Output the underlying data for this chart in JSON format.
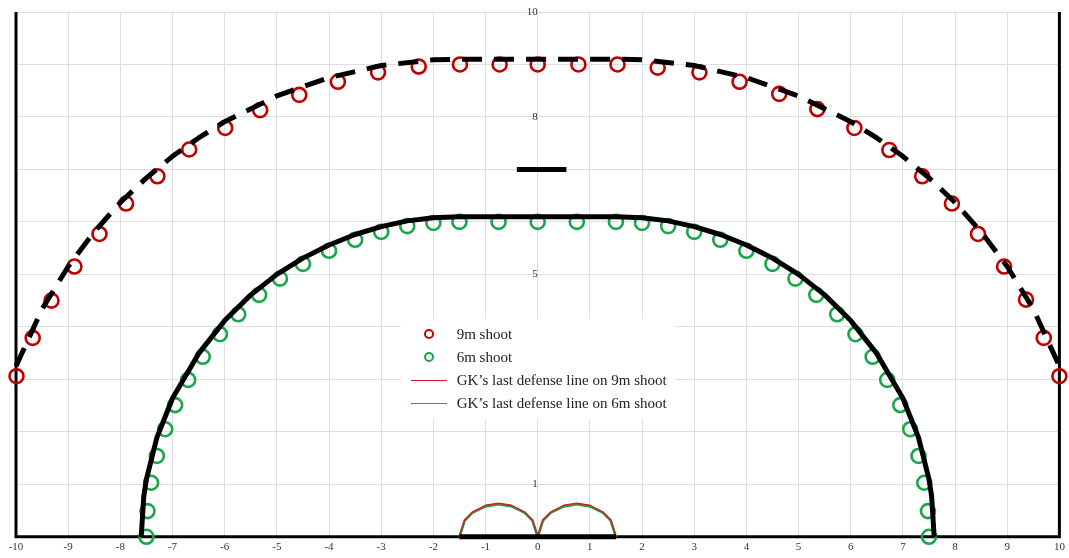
{
  "chart_data": {
    "type": "scatter",
    "xlim": [
      -10,
      10
    ],
    "ylim": [
      0,
      10
    ],
    "xticks": [
      -10,
      -9,
      -8,
      -7,
      -6,
      -5,
      -4,
      -3,
      -2,
      -1,
      0,
      1,
      2,
      3,
      4,
      5,
      6,
      7,
      8,
      9,
      10
    ],
    "yticks": [
      {
        "value": 0,
        "label": null
      },
      1,
      {
        "value": 2,
        "label": null
      },
      {
        "value": 3,
        "label": null
      },
      {
        "value": 4,
        "label": null
      },
      5,
      {
        "value": 6,
        "label": null
      },
      {
        "value": 7,
        "label": null
      },
      8,
      {
        "value": 9,
        "label": null
      },
      10
    ],
    "grid": true,
    "legend": "center",
    "marker": "circle",
    "series": [
      {
        "type": "line",
        "color": "#000000",
        "line_style": "dashed",
        "marker": "none",
        "x": [
          -10,
          -9.5,
          -9,
          -8.5,
          -8,
          -7.5,
          -7,
          -6.5,
          -6,
          -5,
          -4,
          -3,
          -2,
          -1.5,
          0,
          1.5,
          2,
          3,
          4,
          5,
          6,
          6.5,
          7,
          7.5,
          8,
          8.5,
          9,
          9.5,
          10
        ],
        "values": [
          3.25,
          4.34,
          5.15,
          5.81,
          6.37,
          6.84,
          7.25,
          7.6,
          7.91,
          8.4,
          8.75,
          8.98,
          9.09,
          9.1,
          9.1,
          9.1,
          9.09,
          8.98,
          8.75,
          8.4,
          7.91,
          7.6,
          7.25,
          6.84,
          6.37,
          5.81,
          5.15,
          4.34,
          3.25
        ]
      },
      {
        "type": "line",
        "color": "#000000",
        "line_style": "solid",
        "marker": "none",
        "x": [
          -7.6,
          -7.55,
          -7.5,
          -7.3,
          -7,
          -6.5,
          -6,
          -5.5,
          -5,
          -4.5,
          -4,
          -3.5,
          -3,
          -2.5,
          -2,
          -1.5,
          0,
          1.5,
          2,
          2.5,
          3,
          3.5,
          4,
          4.5,
          5,
          5.5,
          6,
          6.5,
          7,
          7.3,
          7.5,
          7.55,
          7.6
        ],
        "values": [
          0,
          0.78,
          1.1,
          1.89,
          2.64,
          3.49,
          4.12,
          4.61,
          5,
          5.31,
          5.56,
          5.76,
          5.91,
          6.02,
          6.08,
          6.1,
          6.1,
          6.1,
          6.08,
          6.02,
          5.91,
          5.76,
          5.56,
          5.31,
          5,
          4.61,
          4.12,
          3.49,
          2.64,
          1.89,
          1.1,
          0.78,
          0
        ]
      },
      {
        "type": "line",
        "color": "#000000",
        "line_style": "solid",
        "marker": "none",
        "x": [
          -1.5,
          1.5
        ],
        "values": [
          0,
          0
        ]
      },
      {
        "type": "line",
        "color": "#000000",
        "line_style": "solid",
        "marker": "none",
        "x": [
          -0.4,
          0.55
        ],
        "values": [
          7,
          7
        ]
      },
      {
        "name": "9m shoot",
        "color": "#c00000",
        "x": [
          -9.99,
          -9.68,
          -9.32,
          -8.88,
          -8.4,
          -7.89,
          -7.29,
          -6.68,
          -5.99,
          -5.32,
          -4.57,
          -3.83,
          -3.06,
          -2.28,
          -1.49,
          -0.73,
          0,
          0.78,
          1.53,
          2.3,
          3.1,
          3.87,
          4.63,
          5.36,
          6.07,
          6.74,
          7.37,
          7.94,
          8.44,
          8.94,
          9.36,
          9.7,
          10
        ],
        "values": [
          3.06,
          3.79,
          4.5,
          5.15,
          5.77,
          6.35,
          6.87,
          7.38,
          7.79,
          8.13,
          8.42,
          8.67,
          8.85,
          8.96,
          9,
          9,
          9,
          9,
          9,
          8.94,
          8.85,
          8.67,
          8.44,
          8.15,
          7.79,
          7.37,
          6.87,
          6.35,
          5.77,
          5.15,
          4.52,
          3.79,
          3.06
        ]
      },
      {
        "name": "6m shoot",
        "color": "#1aa64a",
        "x": [
          -7.5,
          -7.48,
          -7.41,
          -7.3,
          -7.14,
          -6.95,
          -6.7,
          -6.42,
          -6.09,
          -5.74,
          -5.34,
          -4.94,
          -4.5,
          -4,
          -3.5,
          -3,
          -2.5,
          -2,
          -1.5,
          -0.75,
          0,
          0.75,
          1.5,
          2,
          2.5,
          3,
          3.5,
          4,
          4.5,
          4.94,
          5.34,
          5.74,
          6.09,
          6.42,
          6.7,
          6.95,
          7.14,
          7.3,
          7.41,
          7.48,
          7.5
        ],
        "values": [
          0,
          0.49,
          1.03,
          1.54,
          2.05,
          2.51,
          2.99,
          3.43,
          3.86,
          4.24,
          4.61,
          4.92,
          5.2,
          5.45,
          5.66,
          5.81,
          5.92,
          5.98,
          6,
          6,
          6,
          6,
          6,
          5.98,
          5.92,
          5.81,
          5.66,
          5.45,
          5.2,
          4.92,
          4.61,
          4.24,
          3.86,
          3.43,
          2.99,
          2.51,
          2.05,
          1.54,
          1.03,
          0.49,
          0
        ]
      },
      {
        "type": "line",
        "name": "GK’s last defense line on 9m shoot",
        "color": "#d42020",
        "line_style": "solid",
        "marker": "none",
        "x": [
          -1.5,
          -1.4,
          -1.25,
          -1,
          -0.75,
          -0.5,
          -0.25,
          -0.1,
          0,
          0.1,
          0.25,
          0.5,
          0.75,
          1,
          1.25,
          1.4,
          1.5
        ],
        "values": [
          0,
          0.32,
          0.47,
          0.6,
          0.64,
          0.6,
          0.47,
          0.32,
          0,
          0.32,
          0.47,
          0.6,
          0.64,
          0.6,
          0.47,
          0.32,
          0
        ]
      },
      {
        "type": "line",
        "name": "GK’s last defense line on 6m shoot",
        "color": "#22a050",
        "line_style": "solid",
        "marker": "none",
        "x": [
          -1.5,
          -1.4,
          -1.25,
          -1,
          -0.75,
          -0.5,
          -0.25,
          -0.1,
          0,
          0.1,
          0.25,
          0.5,
          0.75,
          1,
          1.25,
          1.4,
          1.5
        ],
        "values": [
          0,
          0.31,
          0.46,
          0.58,
          0.62,
          0.58,
          0.46,
          0.31,
          0,
          0.31,
          0.46,
          0.58,
          0.62,
          0.58,
          0.46,
          0.31,
          0
        ]
      }
    ]
  }
}
